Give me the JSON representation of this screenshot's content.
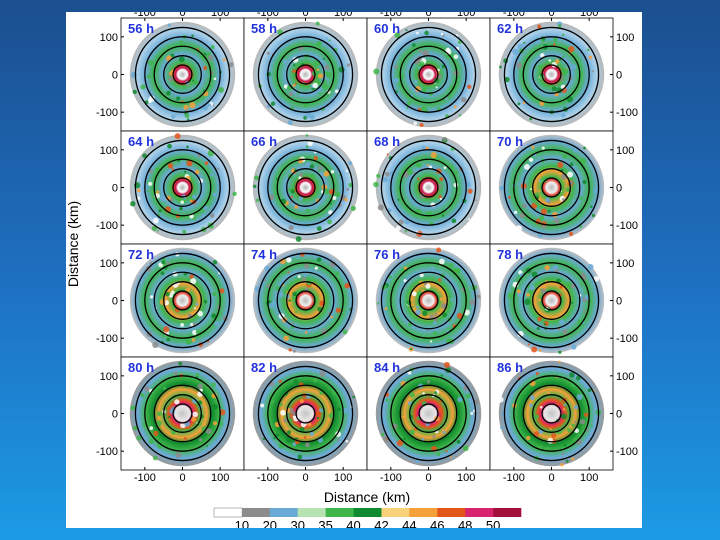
{
  "chart_data": {
    "type": "heatmap",
    "title": "",
    "xlabel": "Distance (km)",
    "ylabel": "Distance (km)",
    "xlim": [
      -150,
      150
    ],
    "ylim": [
      -150,
      150
    ],
    "xticks": [
      "-100",
      "0",
      "100"
    ],
    "yticks": [
      "100",
      "0",
      "-100"
    ],
    "panels": [
      "56 h",
      "58 h",
      "60 h",
      "62 h",
      "64 h",
      "66 h",
      "68 h",
      "70 h",
      "72 h",
      "74 h",
      "76 h",
      "78 h",
      "80 h",
      "82 h",
      "84 h",
      "86 h"
    ],
    "grid_layout": "4x4",
    "range_rings_km": [
      25,
      50,
      75,
      100,
      125
    ],
    "colorbar": {
      "ticks": [
        "10",
        "20",
        "30",
        "35",
        "40",
        "42",
        "44",
        "46",
        "48",
        "50"
      ],
      "colors": [
        "#ffffff",
        "#8c8c8c",
        "#6aaad6",
        "#b7e2b2",
        "#3fb54a",
        "#108a2e",
        "#f7d27a",
        "#f6a03a",
        "#e2561c",
        "#d8246e",
        "#a3103e"
      ]
    }
  }
}
